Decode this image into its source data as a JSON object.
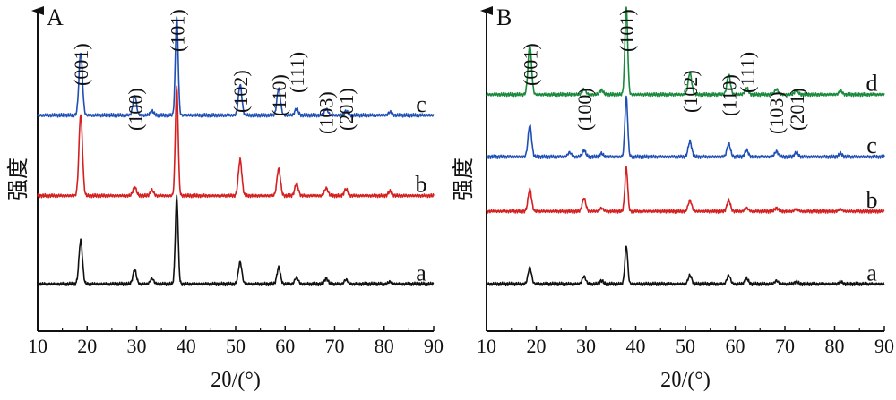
{
  "figure": {
    "panels": [
      "A",
      "B"
    ],
    "xlabel": "2θ/(°)",
    "ylabel": "强度"
  },
  "chart_data": [
    {
      "type": "line",
      "panel": "A",
      "xlabel": "2θ/(°)",
      "ylabel": "强度",
      "xlim": [
        10,
        90
      ],
      "xticks": [
        10,
        20,
        30,
        40,
        50,
        60,
        70,
        80,
        90
      ],
      "peak_labels": [
        {
          "label": "(001)",
          "x": 18.7
        },
        {
          "label": "(100)",
          "x": 29.6
        },
        {
          "label": "(101)",
          "x": 38.1
        },
        {
          "label": "(102)",
          "x": 50.9
        },
        {
          "label": "(110)",
          "x": 58.7
        },
        {
          "label": "(111)",
          "x": 62.3
        },
        {
          "label": "(103)",
          "x": 68.2
        },
        {
          "label": "(201)",
          "x": 72.3
        }
      ],
      "series": [
        {
          "name": "c",
          "color": "#1f4fb5",
          "baseline": 0.78,
          "peaks": [
            [
              18.7,
              0.58
            ],
            [
              29.6,
              0.18
            ],
            [
              33.1,
              0.04
            ],
            [
              38.1,
              0.9
            ],
            [
              50.9,
              0.28
            ],
            [
              58.7,
              0.25
            ],
            [
              62.3,
              0.06
            ],
            [
              68.3,
              0.06
            ],
            [
              72.3,
              0.04
            ],
            [
              81.2,
              0.03
            ]
          ]
        },
        {
          "name": "b",
          "color": "#d42020",
          "baseline": 0.47,
          "peaks": [
            [
              18.7,
              0.75
            ],
            [
              29.6,
              0.08
            ],
            [
              33.1,
              0.05
            ],
            [
              38.1,
              1.0
            ],
            [
              50.9,
              0.33
            ],
            [
              58.7,
              0.25
            ],
            [
              62.3,
              0.11
            ],
            [
              68.3,
              0.07
            ],
            [
              72.3,
              0.06
            ],
            [
              81.2,
              0.04
            ]
          ]
        },
        {
          "name": "a",
          "color": "#111111",
          "baseline": 0.13,
          "peaks": [
            [
              18.7,
              0.4
            ],
            [
              29.6,
              0.13
            ],
            [
              33.1,
              0.05
            ],
            [
              38.1,
              0.8
            ],
            [
              50.9,
              0.2
            ],
            [
              58.7,
              0.15
            ],
            [
              62.3,
              0.06
            ],
            [
              68.3,
              0.05
            ],
            [
              72.3,
              0.04
            ],
            [
              81.2,
              0.02
            ]
          ]
        }
      ]
    },
    {
      "type": "line",
      "panel": "B",
      "xlabel": "2θ/(°)",
      "ylabel": "强度",
      "xlim": [
        10,
        90
      ],
      "xticks": [
        10,
        20,
        30,
        40,
        50,
        60,
        70,
        80,
        90
      ],
      "peak_labels": [
        {
          "label": "(001)",
          "x": 18.7
        },
        {
          "label": "(100)",
          "x": 29.6
        },
        {
          "label": "(101)",
          "x": 38.1
        },
        {
          "label": "(102)",
          "x": 50.9
        },
        {
          "label": "(110)",
          "x": 58.7
        },
        {
          "label": "(111)",
          "x": 62.3
        },
        {
          "label": "(103)",
          "x": 68.2
        },
        {
          "label": "(201)",
          "x": 72.3
        }
      ],
      "series": [
        {
          "name": "d",
          "color": "#1a8a3c",
          "baseline": 0.86,
          "peaks": [
            [
              18.7,
              0.45
            ],
            [
              29.6,
              0.05
            ],
            [
              33.1,
              0.04
            ],
            [
              38.1,
              0.8
            ],
            [
              50.9,
              0.2
            ],
            [
              58.7,
              0.18
            ],
            [
              62.3,
              0.06
            ],
            [
              68.3,
              0.05
            ],
            [
              72.3,
              0.04
            ],
            [
              81.2,
              0.03
            ]
          ]
        },
        {
          "name": "c",
          "color": "#1f4fb5",
          "baseline": 0.62,
          "peaks": [
            [
              18.7,
              0.29
            ],
            [
              26.7,
              0.04
            ],
            [
              29.6,
              0.06
            ],
            [
              33.1,
              0.03
            ],
            [
              38.1,
              0.55
            ],
            [
              50.9,
              0.14
            ],
            [
              58.7,
              0.12
            ],
            [
              62.3,
              0.06
            ],
            [
              68.3,
              0.05
            ],
            [
              72.3,
              0.04
            ],
            [
              81.2,
              0.03
            ]
          ]
        },
        {
          "name": "b",
          "color": "#d42020",
          "baseline": 0.41,
          "peaks": [
            [
              18.7,
              0.2
            ],
            [
              29.6,
              0.12
            ],
            [
              33.1,
              0.03
            ],
            [
              38.1,
              0.4
            ],
            [
              50.9,
              0.1
            ],
            [
              58.7,
              0.1
            ],
            [
              62.3,
              0.03
            ],
            [
              68.3,
              0.03
            ],
            [
              72.3,
              0.02
            ],
            [
              81.2,
              0.02
            ]
          ]
        },
        {
          "name": "a",
          "color": "#111111",
          "baseline": 0.13,
          "peaks": [
            [
              18.7,
              0.15
            ],
            [
              29.6,
              0.07
            ],
            [
              33.1,
              0.03
            ],
            [
              38.1,
              0.35
            ],
            [
              50.9,
              0.08
            ],
            [
              58.7,
              0.08
            ],
            [
              62.3,
              0.05
            ],
            [
              68.3,
              0.03
            ],
            [
              72.3,
              0.02
            ],
            [
              81.2,
              0.02
            ]
          ]
        }
      ]
    }
  ]
}
